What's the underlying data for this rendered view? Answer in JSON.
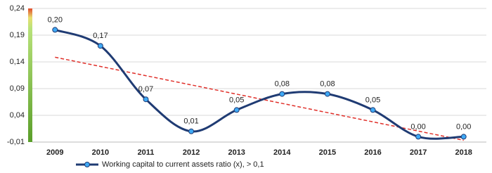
{
  "chart_data": {
    "type": "line",
    "categories": [
      "2009",
      "2010",
      "2011",
      "2012",
      "2013",
      "2014",
      "2015",
      "2016",
      "2017",
      "2018"
    ],
    "series": [
      {
        "name": "Working capital to current assets ratio (x), > 0,1",
        "color": "#1f3b73",
        "values": [
          0.2,
          0.17,
          0.07,
          0.01,
          0.05,
          0.08,
          0.08,
          0.05,
          0.0,
          0.0
        ],
        "value_labels": [
          "0,20",
          "0,17",
          "0,07",
          "0,01",
          "0,05",
          "0,08",
          "0,08",
          "0,05",
          "0,00",
          "0,00"
        ]
      }
    ],
    "trendline": true,
    "trendline_color": "#e0302a",
    "marker_color": "#3fa9f5",
    "ylim": [
      -0.01,
      0.24
    ],
    "yticks": [
      {
        "value": -0.01,
        "label": "-0,01"
      },
      {
        "value": 0.04,
        "label": "0,04"
      },
      {
        "value": 0.09,
        "label": "0,09"
      },
      {
        "value": 0.14,
        "label": "0,14"
      },
      {
        "value": 0.19,
        "label": "0,19"
      },
      {
        "value": 0.24,
        "label": "0,24"
      }
    ],
    "grid": true,
    "legend": "bottom-left"
  }
}
